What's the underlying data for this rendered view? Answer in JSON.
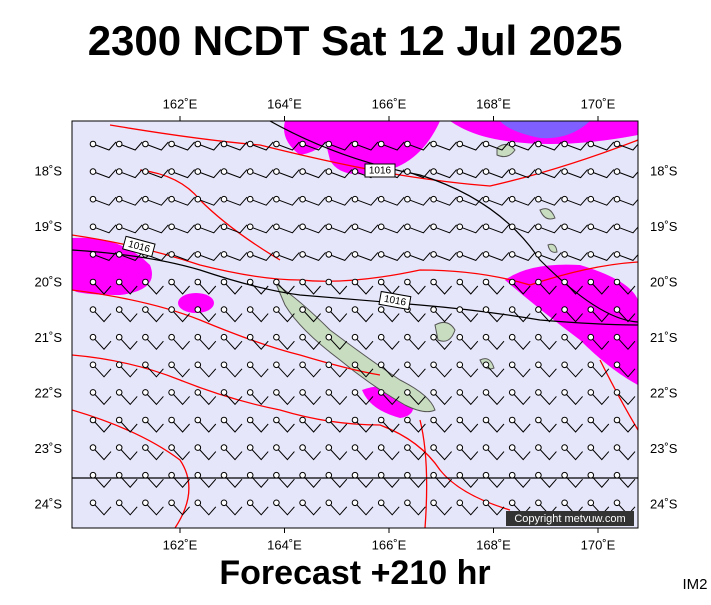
{
  "header": {
    "title": "2300 NCDT Sat 12 Jul 2025"
  },
  "map": {
    "lon_labels": [
      "162˚E",
      "164˚E",
      "166˚E",
      "168˚E",
      "170˚E"
    ],
    "lat_labels": [
      "18˚S",
      "19˚S",
      "20˚S",
      "21˚S",
      "22˚S",
      "23˚S",
      "24˚S"
    ],
    "isobar_labels": [
      "1016",
      "1016",
      "1016"
    ],
    "copyright": "Copyright metvuw.com"
  },
  "footer": {
    "forecast": "Forecast +210 hr",
    "code": "IM2"
  }
}
